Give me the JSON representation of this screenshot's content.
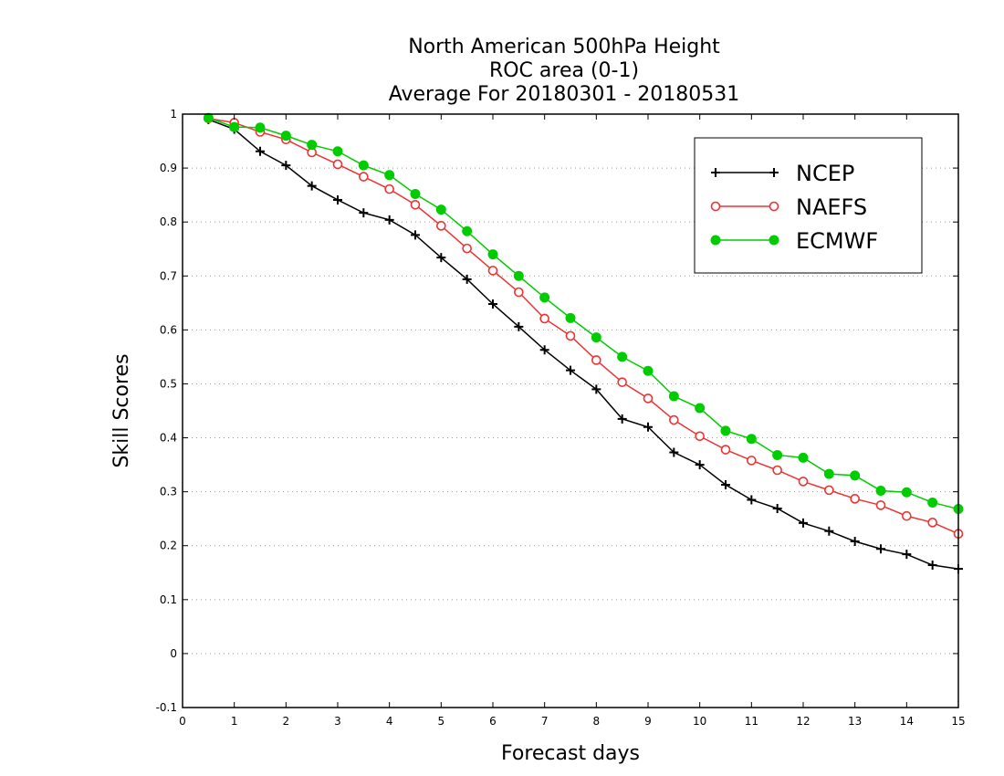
{
  "chart_data": {
    "type": "line",
    "title": "North American 500hPa Height",
    "subtitle": "ROC area (0-1)",
    "subtitle2": "Average For 20180301 - 20180531",
    "xlabel": "Forecast days",
    "ylabel": "Skill Scores",
    "xlim": [
      0,
      15
    ],
    "ylim": [
      -0.1,
      1
    ],
    "xticks": [
      "0",
      "1",
      "2",
      "3",
      "4",
      "5",
      "6",
      "7",
      "8",
      "9",
      "10",
      "11",
      "12",
      "13",
      "14",
      "15"
    ],
    "yticks": [
      "1",
      "0.9",
      "0.8",
      "0.7",
      "0.6",
      "0.5",
      "0.4",
      "0.3",
      "0.2",
      "0.1",
      "0",
      "-0.1"
    ],
    "grid": "horizontal dotted",
    "legend_position": "top-right",
    "x": [
      0.5,
      1,
      1.5,
      2,
      2.5,
      3,
      3.5,
      4,
      4.5,
      5,
      5.5,
      6,
      6.5,
      7,
      7.5,
      8,
      8.5,
      9,
      9.5,
      10,
      10.5,
      11,
      11.5,
      12,
      12.5,
      13,
      13.5,
      14,
      14.5,
      15
    ],
    "series": [
      {
        "name": "NCEP",
        "color": "#000000",
        "marker": "plus",
        "values": [
          0.99,
          0.972,
          0.931,
          0.905,
          0.867,
          0.841,
          0.817,
          0.804,
          0.776,
          0.734,
          0.694,
          0.648,
          0.606,
          0.563,
          0.525,
          0.49,
          0.435,
          0.42,
          0.373,
          0.35,
          0.313,
          0.285,
          0.269,
          0.242,
          0.227,
          0.208,
          0.194,
          0.184,
          0.164,
          0.157
        ]
      },
      {
        "name": "NAEFS",
        "color": "#ee3333",
        "marker": "open-circle",
        "values": [
          0.992,
          0.984,
          0.967,
          0.953,
          0.929,
          0.907,
          0.884,
          0.861,
          0.832,
          0.793,
          0.751,
          0.71,
          0.67,
          0.621,
          0.589,
          0.544,
          0.503,
          0.473,
          0.433,
          0.403,
          0.378,
          0.358,
          0.34,
          0.319,
          0.303,
          0.287,
          0.275,
          0.255,
          0.243,
          0.222
        ]
      },
      {
        "name": "ECMWF",
        "color": "#00cc00",
        "marker": "filled-circle",
        "values": [
          0.993,
          0.976,
          0.975,
          0.96,
          0.943,
          0.931,
          0.905,
          0.887,
          0.852,
          0.823,
          0.783,
          0.74,
          0.7,
          0.66,
          0.622,
          0.586,
          0.55,
          0.524,
          0.477,
          0.455,
          0.413,
          0.398,
          0.368,
          0.363,
          0.333,
          0.33,
          0.302,
          0.299,
          0.28,
          0.268
        ]
      }
    ]
  }
}
